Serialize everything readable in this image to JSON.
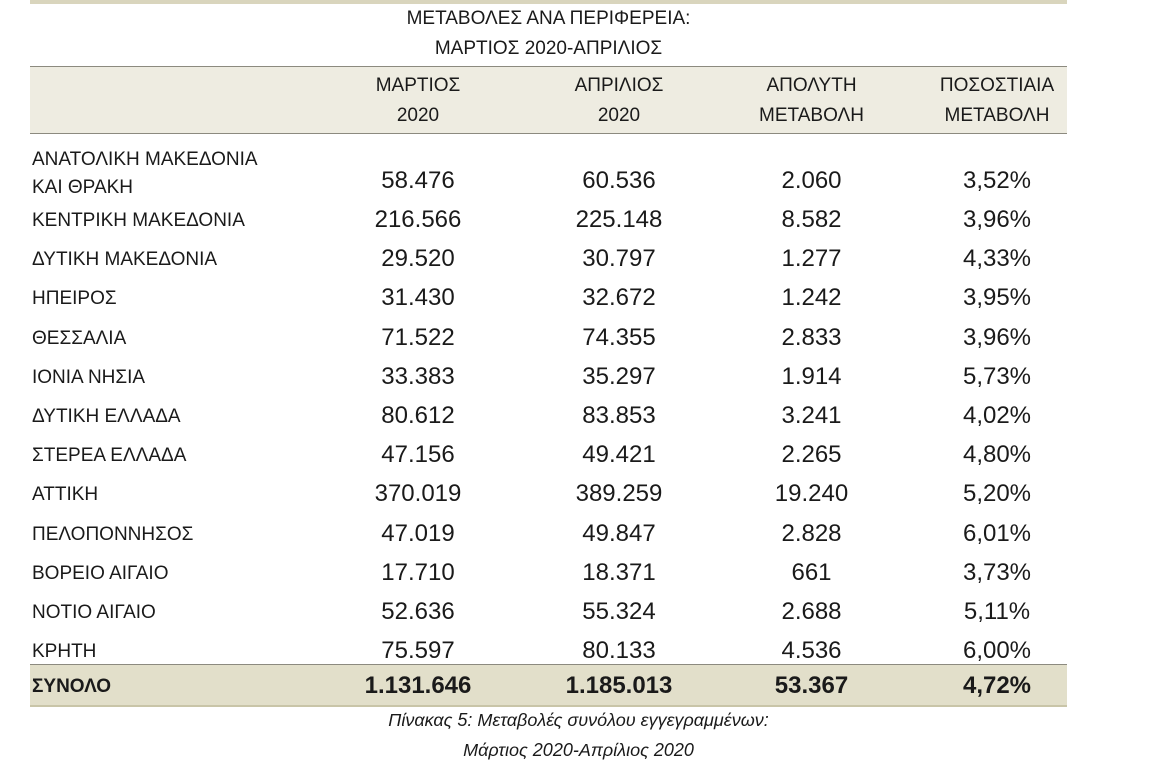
{
  "title_line1": "ΜΕΤΑΒΟΛΕΣ  ΑΝΑ ΠΕΡΙΦΕΡΕΙΑ:",
  "title_line2": "ΜΑΡΤΙΟΣ 2020-ΑΠΡΙΛΙΟΣ",
  "headers": [
    {
      "l1": "ΜΑΡΤΙΟΣ",
      "l2": "2020"
    },
    {
      "l1": "ΑΠΡΙΛΙΟΣ",
      "l2": "2020"
    },
    {
      "l1": "ΑΠΟΛΥΤΗ",
      "l2": "ΜΕΤΑΒΟΛΗ"
    },
    {
      "l1": "ΠΟΣΟΣΤΙΑΙΑ",
      "l2": "ΜΕΤΑΒΟΛΗ"
    }
  ],
  "first_row": {
    "name_l1": "ΑΝΑΤΟΛΙΚΗ ΜΑΚΕΔΟΝΙΑ",
    "name_l2": "ΚΑΙ ΘΡΑΚΗ",
    "values": [
      "58.476",
      "60.536",
      "2.060",
      "3,52%"
    ]
  },
  "rows": [
    {
      "name": "ΚΕΝΤΡΙΚΗ ΜΑΚΕΔΟΝΙΑ",
      "values": [
        "216.566",
        "225.148",
        "8.582",
        "3,96%"
      ]
    },
    {
      "name": "ΔΥΤΙΚΗ ΜΑΚΕΔΟΝΙΑ",
      "values": [
        "29.520",
        "30.797",
        "1.277",
        "4,33%"
      ]
    },
    {
      "name": "ΗΠΕΙΡΟΣ",
      "values": [
        "31.430",
        "32.672",
        "1.242",
        "3,95%"
      ]
    },
    {
      "name": "ΘΕΣΣΑΛΙΑ",
      "values": [
        "71.522",
        "74.355",
        "2.833",
        "3,96%"
      ]
    },
    {
      "name": "ΙΟΝΙΑ ΝΗΣΙΑ",
      "values": [
        "33.383",
        "35.297",
        "1.914",
        "5,73%"
      ]
    },
    {
      "name": "ΔΥΤΙΚΗ ΕΛΛΑΔΑ",
      "values": [
        "80.612",
        "83.853",
        "3.241",
        "4,02%"
      ]
    },
    {
      "name": "ΣΤΕΡΕΑ ΕΛΛΑΔΑ",
      "values": [
        "47.156",
        "49.421",
        "2.265",
        "4,80%"
      ]
    },
    {
      "name": "ΑΤΤΙΚΗ",
      "values": [
        "370.019",
        "389.259",
        "19.240",
        "5,20%"
      ]
    },
    {
      "name": "ΠΕΛΟΠΟΝΝΗΣΟΣ",
      "values": [
        "47.019",
        "49.847",
        "2.828",
        "6,01%"
      ]
    },
    {
      "name": "ΒΟΡΕΙΟ ΑΙΓΑΙΟ",
      "values": [
        "17.710",
        "18.371",
        "661",
        "3,73%"
      ]
    },
    {
      "name": "ΝΟΤΙΟ ΑΙΓΑΙΟ",
      "values": [
        "52.636",
        "55.324",
        "2.688",
        "5,11%"
      ]
    },
    {
      "name": "ΚΡΗΤΗ",
      "values": [
        "75.597",
        "80.133",
        "4.536",
        "6,00%"
      ]
    }
  ],
  "total": {
    "name": "ΣΥΝΟΛΟ",
    "values": [
      "1.131.646",
      "1.185.013",
      "53.367",
      "4,72%"
    ]
  },
  "caption_line1": "Πίνακας 5: Μεταβολές συνόλου εγγεγραμμένων:",
  "caption_line2": "Μάρτιος 2020-Απρίλιος 2020"
}
